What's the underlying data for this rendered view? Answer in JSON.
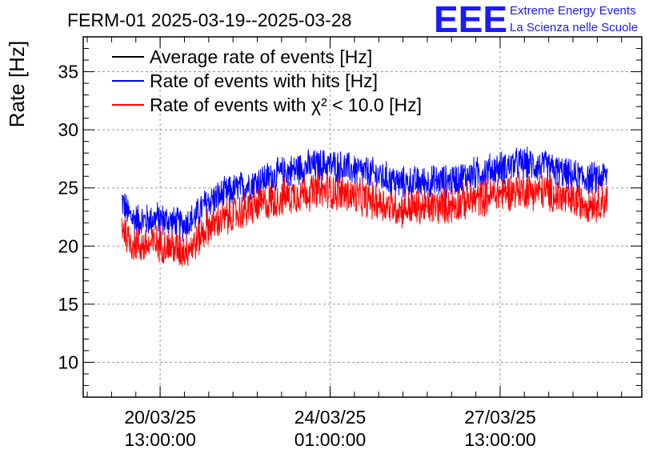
{
  "chart_data": {
    "type": "line",
    "title": "FERM-01 2025-03-19--2025-03-28",
    "ylabel": "Rate [Hz]",
    "xlabel": "",
    "ylim": [
      7,
      38
    ],
    "yticks": [
      10,
      15,
      20,
      25,
      30,
      35
    ],
    "x_range": [
      "2025-03-18T23:00:00",
      "2025-03-30T11:00:00"
    ],
    "xticks": [
      {
        "date": "2025-03-20T13:00:00",
        "line1": "20/03/25",
        "line2": "13:00:00"
      },
      {
        "date": "2025-03-24T01:00:00",
        "line1": "24/03/25",
        "line2": "01:00:00"
      },
      {
        "date": "2025-03-27T13:00:00",
        "line1": "27/03/25",
        "line2": "13:00:00"
      }
    ],
    "grid": true,
    "legend_position": "top-left",
    "series": [
      {
        "name": "Average rate of events [Hz]",
        "color": "#000000",
        "noise": 0,
        "x": [],
        "y": []
      },
      {
        "name": "Rate of events with hits [Hz]",
        "color": "#0000ff",
        "noise": 1.6,
        "x": [
          "2025-03-19T18:00:00",
          "2025-03-19T21:00:00",
          "2025-03-20T00:00:00",
          "2025-03-20T06:00:00",
          "2025-03-20T12:00:00",
          "2025-03-20T18:00:00",
          "2025-03-21T00:00:00",
          "2025-03-21T06:00:00",
          "2025-03-21T12:00:00",
          "2025-03-22T00:00:00",
          "2025-03-22T12:00:00",
          "2025-03-23T00:00:00",
          "2025-03-23T12:00:00",
          "2025-03-24T00:00:00",
          "2025-03-24T12:00:00",
          "2025-03-25T00:00:00",
          "2025-03-25T12:00:00",
          "2025-03-26T00:00:00",
          "2025-03-26T12:00:00",
          "2025-03-27T00:00:00",
          "2025-03-27T12:00:00",
          "2025-03-28T00:00:00",
          "2025-03-28T12:00:00",
          "2025-03-29T00:00:00",
          "2025-03-29T12:00:00",
          "2025-03-29T18:00:00"
        ],
        "y": [
          24.0,
          22.8,
          22.3,
          22.2,
          22.4,
          22.1,
          21.8,
          22.4,
          23.8,
          24.7,
          25.5,
          26.2,
          26.8,
          27.0,
          26.6,
          26.1,
          25.4,
          25.5,
          25.6,
          26.2,
          26.7,
          27.1,
          26.8,
          26.0,
          25.8,
          26.1
        ]
      },
      {
        "name": "Rate of events with χ² < 10.0 [Hz]",
        "color": "#ff0000",
        "noise": 1.8,
        "x": [
          "2025-03-19T18:00:00",
          "2025-03-19T21:00:00",
          "2025-03-20T00:00:00",
          "2025-03-20T06:00:00",
          "2025-03-20T12:00:00",
          "2025-03-20T18:00:00",
          "2025-03-21T00:00:00",
          "2025-03-21T06:00:00",
          "2025-03-21T12:00:00",
          "2025-03-22T00:00:00",
          "2025-03-22T12:00:00",
          "2025-03-23T00:00:00",
          "2025-03-23T12:00:00",
          "2025-03-24T00:00:00",
          "2025-03-24T12:00:00",
          "2025-03-25T00:00:00",
          "2025-03-25T12:00:00",
          "2025-03-26T00:00:00",
          "2025-03-26T12:00:00",
          "2025-03-27T00:00:00",
          "2025-03-27T12:00:00",
          "2025-03-28T00:00:00",
          "2025-03-28T12:00:00",
          "2025-03-29T00:00:00",
          "2025-03-29T12:00:00",
          "2025-03-29T18:00:00"
        ],
        "y": [
          22.0,
          20.6,
          20.2,
          20.0,
          20.3,
          19.9,
          19.6,
          20.2,
          21.6,
          22.6,
          23.4,
          24.1,
          24.6,
          24.8,
          24.3,
          23.8,
          23.2,
          23.3,
          23.5,
          24.0,
          24.5,
          24.9,
          24.6,
          23.9,
          23.7,
          24.0
        ]
      }
    ]
  },
  "logo": {
    "mark": "EEE",
    "line1": "Extreme Energy Events",
    "line2": "La Scienza nelle Scuole"
  }
}
